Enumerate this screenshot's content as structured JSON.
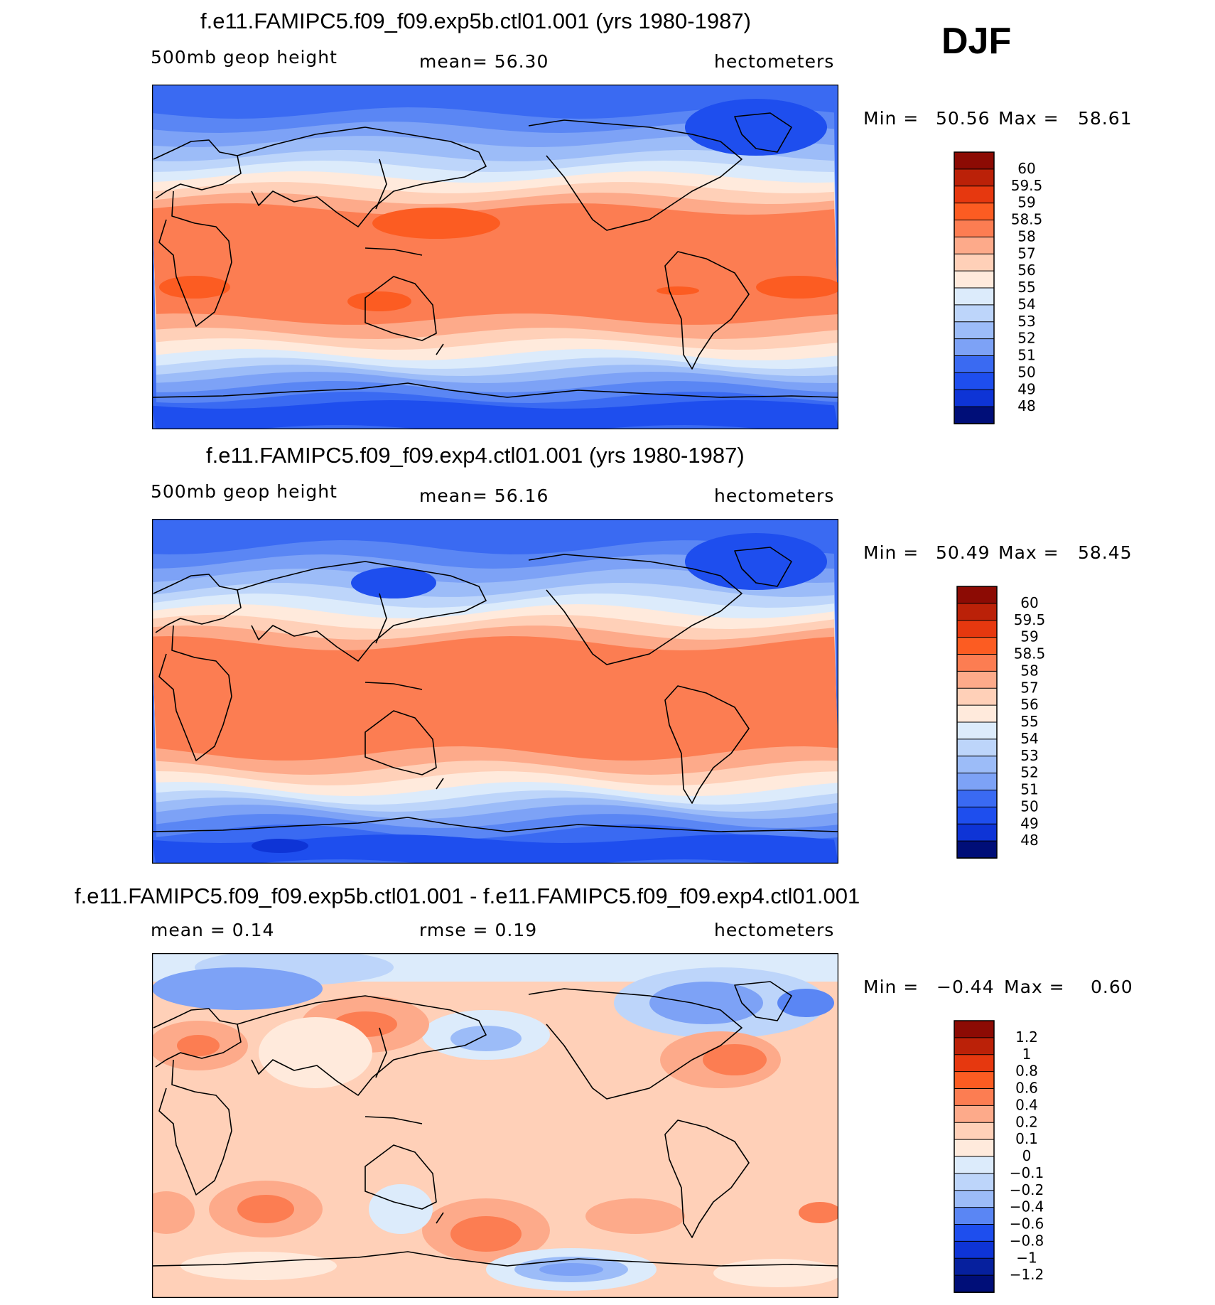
{
  "season": "DJF",
  "units": "hectometers",
  "colors": {
    "warm": [
      "#FFEADC",
      "#FFD0B8",
      "#FDAA8A",
      "#FC7D52",
      "#FC5C22",
      "#E6380F",
      "#BB2108",
      "#8C0B04"
    ],
    "cool": [
      "#DCEBFB",
      "#BDD5FA",
      "#9CBCF8",
      "#7DA2F6",
      "#5A86F4",
      "#3A6AF2",
      "#1E4EEE",
      "#0E34D6",
      "#06209E",
      "#000E78"
    ]
  },
  "panels": [
    {
      "title": "f.e11.FAMIPC5.f09_f09.exp5b.ctl01.001 (yrs 1980-1987)",
      "left": "500mb  geop  height",
      "center": "mean=   56.30",
      "right": "hectometers",
      "min_label": "Min  =",
      "min_value": "50.56",
      "max_label": "Max  =",
      "max_value": "58.61"
    },
    {
      "title": "f.e11.FAMIPC5.f09_f09.exp4.ctl01.001 (yrs 1980-1987)",
      "left": "500mb  geop  height",
      "center": "mean=   56.16",
      "right": "hectometers",
      "min_label": "Min  =",
      "min_value": "50.49",
      "max_label": "Max  =",
      "max_value": "58.45"
    },
    {
      "title": "f.e11.FAMIPC5.f09_f09.exp5b.ctl01.001 - f.e11.FAMIPC5.f09_f09.exp4.ctl01.001",
      "left": "mean  =     0.14",
      "center": "rmse  =     0.19",
      "right": "hectometers",
      "min_label": "Min  =",
      "min_value": "−0.44",
      "max_label": "Max  =",
      "max_value": "0.60"
    }
  ],
  "chart_data": [
    {
      "type": "heatmap",
      "title": "f.e11.FAMIPC5.f09_f09.exp5b.ctl01.001 (yrs 1980-1987)",
      "variable": "500mb geop height",
      "units": "hectometers",
      "season": "DJF",
      "mean": 56.3,
      "min": 50.56,
      "max": 58.61,
      "colorbar_levels": [
        48,
        49,
        50,
        51,
        52,
        53,
        54,
        55,
        56,
        57,
        58,
        58.5,
        59,
        59.5,
        60
      ],
      "colorbar_labels": [
        "60",
        "59.5",
        "59",
        "58.5",
        "58",
        "57",
        "56",
        "55",
        "54",
        "53",
        "52",
        "51",
        "50",
        "49",
        "48"
      ]
    },
    {
      "type": "heatmap",
      "title": "f.e11.FAMIPC5.f09_f09.exp4.ctl01.001 (yrs 1980-1987)",
      "variable": "500mb geop height",
      "units": "hectometers",
      "season": "DJF",
      "mean": 56.16,
      "min": 50.49,
      "max": 58.45,
      "colorbar_levels": [
        48,
        49,
        50,
        51,
        52,
        53,
        54,
        55,
        56,
        57,
        58,
        58.5,
        59,
        59.5,
        60
      ],
      "colorbar_labels": [
        "60",
        "59.5",
        "59",
        "58.5",
        "58",
        "57",
        "56",
        "55",
        "54",
        "53",
        "52",
        "51",
        "50",
        "49",
        "48"
      ]
    },
    {
      "type": "heatmap",
      "title": "f.e11.FAMIPC5.f09_f09.exp5b.ctl01.001 - f.e11.FAMIPC5.f09_f09.exp4.ctl01.001",
      "variable": "difference",
      "units": "hectometers",
      "season": "DJF",
      "mean": 0.14,
      "rmse": 0.19,
      "min": -0.44,
      "max": 0.6,
      "colorbar_levels": [
        -1.2,
        -1,
        -0.8,
        -0.6,
        -0.4,
        -0.2,
        -0.1,
        0,
        0.1,
        0.2,
        0.4,
        0.6,
        0.8,
        1,
        1.2
      ],
      "colorbar_labels": [
        "1.2",
        "1",
        "0.8",
        "0.6",
        "0.4",
        "0.2",
        "0.1",
        "0",
        "−0.1",
        "−0.2",
        "−0.4",
        "−0.6",
        "−0.8",
        "−1",
        "−1.2"
      ]
    }
  ]
}
